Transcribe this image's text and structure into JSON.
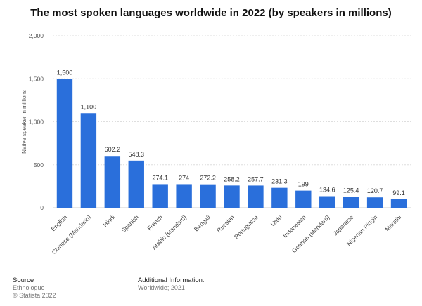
{
  "title": "The most spoken languages worldwide in 2022 (by speakers in millions)",
  "chart_data": {
    "type": "bar",
    "ylabel": "Native speaker in millions",
    "ylim": [
      0,
      2000
    ],
    "yticks": [
      "0",
      "500",
      "1,000",
      "1,500",
      "2,000"
    ],
    "ytick_values": [
      0,
      500,
      1000,
      1500,
      2000
    ],
    "categories": [
      "English",
      "Chinese (Mandarin)",
      "Hindi",
      "Spanish",
      "French",
      "Arabic (standard)",
      "Bengali",
      "Russian",
      "Portuguese",
      "Urdu",
      "Indonesian",
      "German (standard)",
      "Japanese",
      "Nigerian Pidgin",
      "Marathi"
    ],
    "values": [
      1500,
      1100,
      602.2,
      548.3,
      274.1,
      274,
      272.2,
      258.2,
      257.7,
      231.3,
      199,
      134.6,
      125.4,
      120.7,
      99.1
    ],
    "value_labels": [
      "1,500",
      "1,100",
      "602.2",
      "548.3",
      "274.1",
      "274",
      "272.2",
      "258.2",
      "257.7",
      "231.3",
      "199",
      "134.6",
      "125.4",
      "120.7",
      "99.1"
    ],
    "bar_color": "#2a6fdb",
    "grid": true
  },
  "footer": {
    "source_heading": "Source",
    "source_lines": [
      "Ethnologue",
      "© Statista 2022"
    ],
    "info_heading": "Additional Information:",
    "info_lines": [
      "Worldwide; 2021"
    ]
  }
}
